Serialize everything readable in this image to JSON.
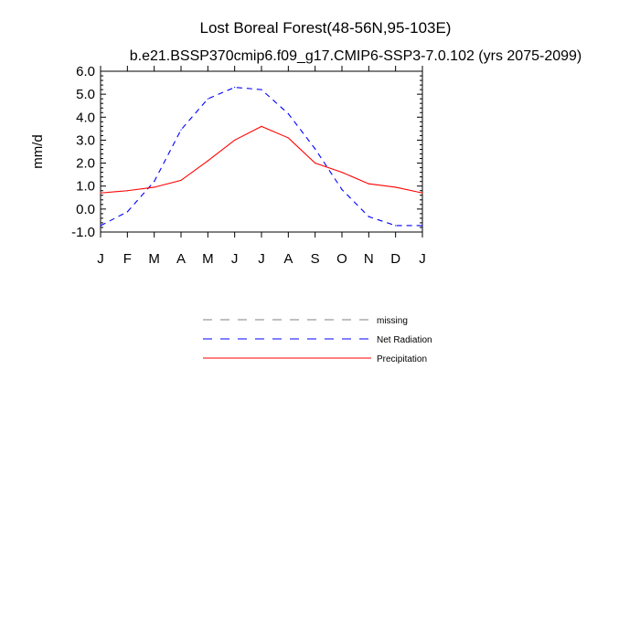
{
  "chart_data": {
    "type": "line",
    "title": "Lost Boreal Forest(48-56N,95-103E)",
    "subtitle": "b.e21.BSSP370cmip6.f09_g17.CMIP6-SSP3-7.0.102 (yrs 2075-2099)",
    "xlabel": "",
    "ylabel": "mm/d",
    "x_tick_labels": [
      "J",
      "F",
      "M",
      "A",
      "M",
      "J",
      "J",
      "A",
      "S",
      "O",
      "N",
      "D",
      "J"
    ],
    "y_tick_labels": [
      "6.0",
      "5.0",
      "4.0",
      "3.0",
      "2.0",
      "1.0",
      "0.0",
      "-1.0"
    ],
    "y_ticks": [
      6,
      5,
      4,
      3,
      2,
      1,
      0,
      -1
    ],
    "ylim": [
      -1,
      6
    ],
    "xlim": [
      0,
      12
    ],
    "x": [
      0,
      1,
      2,
      3,
      4,
      5,
      6,
      7,
      8,
      9,
      10,
      11,
      12
    ],
    "series": [
      {
        "name": "Net Radiation",
        "color": "#0000ff",
        "dash": "dashed",
        "values": [
          -0.72,
          -0.12,
          1.2,
          3.45,
          4.8,
          5.3,
          5.2,
          4.15,
          2.62,
          0.85,
          -0.33,
          -0.72,
          -0.72
        ]
      },
      {
        "name": "Precipitation",
        "color": "#ff0000",
        "dash": "solid",
        "values": [
          0.7,
          0.8,
          0.95,
          1.25,
          2.1,
          3.0,
          3.6,
          3.1,
          2.0,
          1.6,
          1.1,
          0.95,
          0.7
        ]
      }
    ],
    "legend": {
      "placement": "below",
      "entries": [
        {
          "label": "missing",
          "color": "#808080",
          "dash": "dashed"
        },
        {
          "label": "Net Radiation",
          "color": "#0000ff",
          "dash": "dashed"
        },
        {
          "label": "Precipitation",
          "color": "#ff0000",
          "dash": "solid"
        }
      ]
    },
    "grid": false
  }
}
